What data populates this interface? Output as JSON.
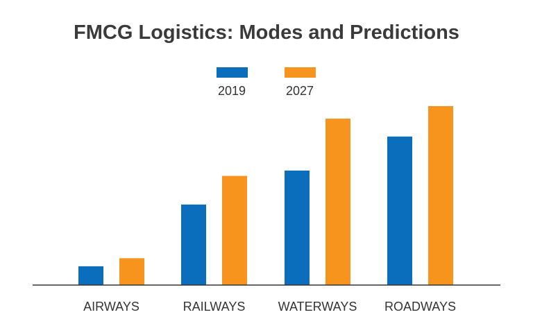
{
  "chart_data": {
    "type": "bar",
    "title": "FMCG Logistics: Modes and Predictions",
    "xlabel": "",
    "ylabel": "",
    "categories": [
      "AIRWAYS",
      "RAILWAYS",
      "WATERWAYS",
      "ROADWAYS"
    ],
    "series": [
      {
        "name": "2019",
        "color": "#0A6EBD",
        "values": [
          10.5,
          45,
          64,
          83
        ]
      },
      {
        "name": "2027",
        "color": "#F7941D",
        "values": [
          15,
          61,
          93,
          100
        ]
      }
    ],
    "ylim": [
      0,
      100
    ],
    "y_axis_shown": false,
    "grid": false,
    "legend_position": "top-center"
  }
}
